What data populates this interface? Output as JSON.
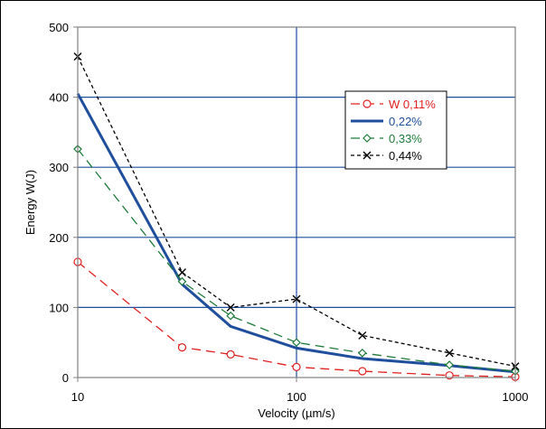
{
  "chart_data": {
    "type": "line",
    "xscale": "log",
    "xlim": [
      10,
      1000
    ],
    "ylim": [
      0,
      500
    ],
    "xlabel": "Velocity (µm/s)",
    "ylabel": "Energy W(J)",
    "x_ticks": [
      "10",
      "100",
      "1000"
    ],
    "y_ticks": [
      "0",
      "100",
      "200",
      "300",
      "400",
      "500"
    ],
    "grid": true,
    "legend_position": "upper-right",
    "series": [
      {
        "name": "W 0,11%",
        "color": "#e02020",
        "line_style": "dashed",
        "marker": "circle",
        "x": [
          10,
          30,
          50,
          100,
          200,
          500,
          1000
        ],
        "y": [
          165,
          43,
          33,
          15,
          9,
          3,
          1
        ]
      },
      {
        "name": "0,22%",
        "color": "#1f4e9c",
        "line_style": "solid",
        "marker": "none",
        "x": [
          10,
          30,
          50,
          100,
          200,
          500,
          1000
        ],
        "y": [
          405,
          133,
          73,
          42,
          27,
          17,
          8
        ]
      },
      {
        "name": "0,33%",
        "color": "#1f7a3a",
        "line_style": "dashed",
        "marker": "diamond",
        "x": [
          10,
          30,
          50,
          100,
          200,
          500,
          1000
        ],
        "y": [
          326,
          137,
          88,
          50,
          35,
          18,
          9
        ]
      },
      {
        "name": "0,44%",
        "color": "#000000",
        "line_style": "dotted",
        "marker": "x",
        "x": [
          10,
          30,
          50,
          100,
          200,
          500,
          1000
        ],
        "y": [
          458,
          150,
          100,
          112,
          60,
          35,
          16
        ]
      }
    ]
  }
}
